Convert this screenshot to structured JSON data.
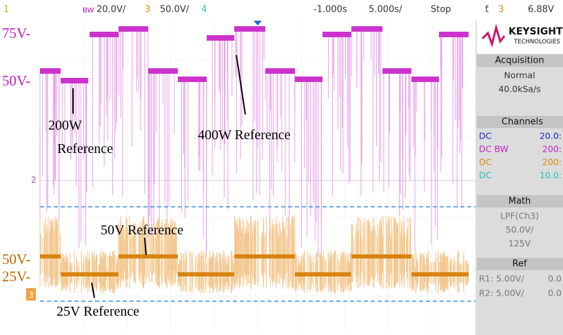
{
  "top_bar": {
    "ch1": "1",
    "bw": "BW",
    "ch2_scale": "20.0V/",
    "ch3": "3",
    "ch3_scale": "50.0V/",
    "ch4": "4",
    "delay": "-1.000s",
    "timebase": "5.000s/",
    "run_state": "Stop",
    "trigger_source": "3",
    "trigger_level": "6.88V"
  },
  "side_panel": {
    "brand": "KEYSIGHT",
    "brand_sub": "TECHNOLOGIES",
    "acquisition": {
      "title": "Acquisition",
      "mode": "Normal",
      "rate": "40.0kSa/s"
    },
    "channels": {
      "title": "Channels",
      "rows": [
        [
          "DC",
          "20.0:"
        ],
        [
          "DC BW",
          "200:"
        ],
        [
          "DC",
          "200:"
        ],
        [
          "DC",
          "10.0:"
        ]
      ]
    },
    "math": {
      "title": "Math",
      "function": "LPF(Ch3)",
      "scale": "50.0V/",
      "offset": "125V"
    },
    "ref": {
      "title": "Ref",
      "rows": [
        [
          "R1: 5.00V/",
          "0.0"
        ],
        [
          "R2: 5.00V/",
          "0.0"
        ]
      ]
    }
  },
  "screen": {
    "markers": {
      "ch2": "2",
      "ch3": "3"
    },
    "level_labels": [
      "75V-",
      "50V-",
      "50V-",
      "25V-"
    ],
    "annotations": {
      "ref_200w_1": "200W",
      "ref_200w_2": "Reference",
      "ref_400w": "400W Reference",
      "ref_50v": "50V Reference",
      "ref_25v": "25V Reference"
    }
  }
}
